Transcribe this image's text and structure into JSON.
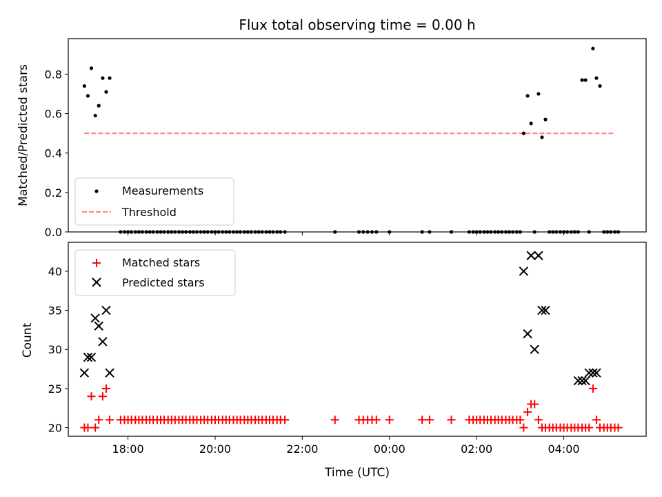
{
  "colors": {
    "measurement": "#000000",
    "threshold": "#ff7f7f",
    "matched": "#ff0000",
    "predicted": "#000000"
  },
  "chart_data": [
    {
      "type": "scatter",
      "title": "Flux total observing time = 0.00 h",
      "xlabel": "",
      "ylabel": "Matched/Predicted stars",
      "xlim": [
        16.63,
        29.89
      ],
      "ylim": [
        0,
        0.98
      ],
      "yticks": [
        0.0,
        0.2,
        0.4,
        0.6,
        0.8
      ],
      "yticklabels": [
        "0.0",
        "0.2",
        "0.4",
        "0.6",
        "0.8"
      ],
      "threshold": {
        "value": 0.5,
        "x": [
          17.0,
          29.17
        ]
      },
      "legend": {
        "placement": "lower-left",
        "entries": [
          "Measurements",
          "Threshold"
        ]
      },
      "series": [
        {
          "name": "Measurements",
          "x": [
            17.0,
            17.08,
            17.16,
            17.25,
            17.33,
            17.42,
            17.5,
            17.58,
            17.83,
            17.92,
            18.0,
            18.08,
            18.17,
            18.25,
            18.33,
            18.42,
            18.5,
            18.58,
            18.67,
            18.75,
            18.83,
            18.92,
            19.0,
            19.08,
            19.17,
            19.25,
            19.33,
            19.42,
            19.5,
            19.58,
            19.67,
            19.75,
            19.83,
            19.92,
            20.0,
            20.08,
            20.17,
            20.25,
            20.33,
            20.42,
            20.5,
            20.58,
            20.67,
            20.75,
            20.83,
            20.92,
            21.0,
            21.08,
            21.17,
            21.25,
            21.33,
            21.42,
            21.5,
            21.6,
            22.75,
            23.3,
            23.4,
            23.5,
            23.6,
            23.7,
            24.0,
            24.75,
            24.92,
            25.42,
            25.83,
            25.92,
            26.0,
            26.08,
            26.17,
            26.25,
            26.33,
            26.42,
            26.5,
            26.58,
            26.67,
            26.75,
            26.83,
            26.92,
            27.0,
            27.08,
            27.17,
            27.25,
            27.33,
            27.42,
            27.5,
            27.58,
            27.67,
            27.75,
            27.83,
            27.92,
            28.0,
            28.08,
            28.17,
            28.25,
            28.33,
            28.42,
            28.5,
            28.58,
            28.67,
            28.75,
            28.83,
            28.92,
            29.0,
            29.08,
            29.17,
            29.25
          ],
          "y": [
            0.74,
            0.69,
            0.83,
            0.59,
            0.64,
            0.78,
            0.71,
            0.78,
            0,
            0,
            0,
            0,
            0,
            0,
            0,
            0,
            0,
            0,
            0,
            0,
            0,
            0,
            0,
            0,
            0,
            0,
            0,
            0,
            0,
            0,
            0,
            0,
            0,
            0,
            0,
            0,
            0,
            0,
            0,
            0,
            0,
            0,
            0,
            0,
            0,
            0,
            0,
            0,
            0,
            0,
            0,
            0,
            0,
            0,
            0,
            0,
            0,
            0,
            0,
            0,
            0,
            0,
            0,
            0,
            0,
            0,
            0,
            0,
            0,
            0,
            0,
            0,
            0,
            0,
            0,
            0,
            0,
            0,
            0,
            0.5,
            0.69,
            0.55,
            0,
            0.7,
            0.48,
            0.57,
            0,
            0,
            0,
            0,
            0,
            0,
            0,
            0,
            0,
            0.77,
            0.77,
            0,
            0.93,
            0.78,
            0.74,
            0,
            0,
            0,
            0,
            0
          ]
        }
      ]
    },
    {
      "type": "scatter",
      "title": "",
      "xlabel": "Time (UTC)",
      "ylabel": "Count",
      "xlim": [
        16.63,
        29.89
      ],
      "ylim": [
        18.9,
        43.7
      ],
      "yticks": [
        20,
        25,
        30,
        35,
        40
      ],
      "yticklabels": [
        "20",
        "25",
        "30",
        "35",
        "40"
      ],
      "xticks": [
        18,
        20,
        22,
        24,
        26,
        28
      ],
      "xticklabels": [
        "18:00",
        "20:00",
        "22:00",
        "00:00",
        "02:00",
        "04:00"
      ],
      "legend": {
        "placement": "upper-left",
        "entries": [
          "Matched stars",
          "Predicted stars"
        ]
      },
      "series": [
        {
          "name": "Matched stars",
          "x": [
            17.0,
            17.08,
            17.16,
            17.25,
            17.33,
            17.42,
            17.5,
            17.58,
            17.83,
            17.92,
            18.0,
            18.08,
            18.17,
            18.25,
            18.33,
            18.42,
            18.5,
            18.58,
            18.67,
            18.75,
            18.83,
            18.92,
            19.0,
            19.08,
            19.17,
            19.25,
            19.33,
            19.42,
            19.5,
            19.58,
            19.67,
            19.75,
            19.83,
            19.92,
            20.0,
            20.08,
            20.17,
            20.25,
            20.33,
            20.42,
            20.5,
            20.58,
            20.67,
            20.75,
            20.83,
            20.92,
            21.0,
            21.08,
            21.17,
            21.25,
            21.33,
            21.42,
            21.5,
            21.6,
            22.75,
            23.3,
            23.4,
            23.5,
            23.6,
            23.7,
            24.0,
            24.75,
            24.92,
            25.42,
            25.83,
            25.92,
            26.0,
            26.08,
            26.17,
            26.25,
            26.33,
            26.42,
            26.5,
            26.58,
            26.67,
            26.75,
            26.83,
            26.92,
            27.0,
            27.08,
            27.17,
            27.25,
            27.33,
            27.42,
            27.5,
            27.58,
            27.67,
            27.75,
            27.83,
            27.92,
            28.0,
            28.08,
            28.17,
            28.25,
            28.33,
            28.42,
            28.5,
            28.58,
            28.67,
            28.75,
            28.83,
            28.92,
            29.0,
            29.08,
            29.17,
            29.25
          ],
          "y": [
            20,
            20,
            24,
            20,
            21,
            24,
            25,
            21,
            21,
            21,
            21,
            21,
            21,
            21,
            21,
            21,
            21,
            21,
            21,
            21,
            21,
            21,
            21,
            21,
            21,
            21,
            21,
            21,
            21,
            21,
            21,
            21,
            21,
            21,
            21,
            21,
            21,
            21,
            21,
            21,
            21,
            21,
            21,
            21,
            21,
            21,
            21,
            21,
            21,
            21,
            21,
            21,
            21,
            21,
            21,
            21,
            21,
            21,
            21,
            21,
            21,
            21,
            21,
            21,
            21,
            21,
            21,
            21,
            21,
            21,
            21,
            21,
            21,
            21,
            21,
            21,
            21,
            21,
            21,
            20,
            22,
            23,
            23,
            21,
            20,
            20,
            20,
            20,
            20,
            20,
            20,
            20,
            20,
            20,
            20,
            20,
            20,
            20,
            25,
            21,
            20,
            20,
            20,
            20,
            20,
            20
          ]
        },
        {
          "name": "Predicted stars",
          "x": [
            17.0,
            17.08,
            17.16,
            17.25,
            17.33,
            17.42,
            17.5,
            17.58,
            27.08,
            27.17,
            27.25,
            27.33,
            27.42,
            27.5,
            27.58,
            28.33,
            28.42,
            28.5,
            28.58,
            28.67,
            28.75
          ],
          "y": [
            27,
            29,
            29,
            34,
            33,
            31,
            35,
            27,
            40,
            32,
            42,
            30,
            42,
            35,
            35,
            26,
            26,
            26,
            27,
            27,
            27
          ]
        }
      ]
    }
  ]
}
